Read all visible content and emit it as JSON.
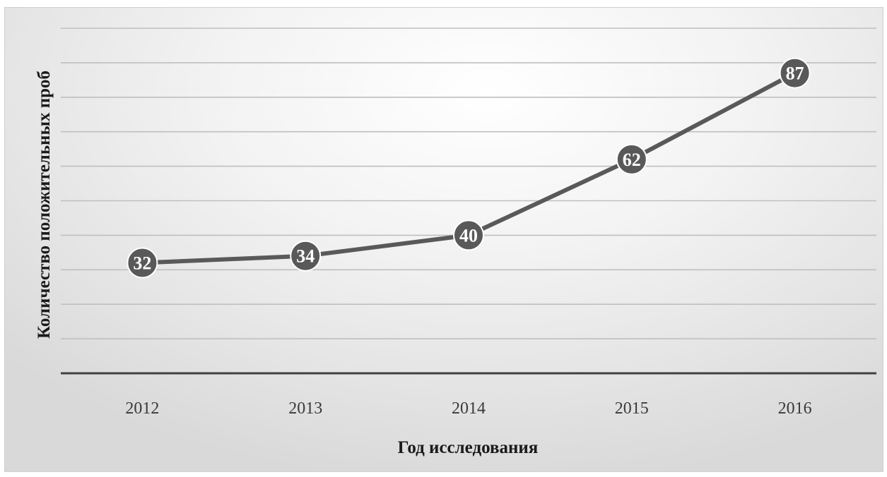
{
  "chart_data": {
    "type": "line",
    "title": "",
    "xlabel": "Год исследования",
    "ylabel": "Количество положительных проб",
    "categories": [
      "2012",
      "2013",
      "2014",
      "2015",
      "2016"
    ],
    "series": [
      {
        "values": [
          32,
          34,
          40,
          62,
          87
        ]
      }
    ],
    "data_labels": [
      "32",
      "34",
      "40",
      "62",
      "87"
    ],
    "ylim": [
      0,
      100
    ],
    "y_tick_labels_visible": false,
    "grid": true,
    "legend": "none",
    "colors": {
      "line": "#595959",
      "marker": "#595959",
      "label_text": "#ffffff",
      "grid": "#bfbfbf",
      "axis": "#404040"
    }
  }
}
